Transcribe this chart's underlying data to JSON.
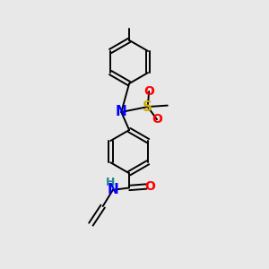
{
  "background_color": "#e8e8e8",
  "bond_color": "#000000",
  "atom_colors": {
    "N": "#0000ff",
    "O": "#ff0000",
    "S": "#ccaa00",
    "H": "#228888",
    "C": "#000000"
  },
  "figsize": [
    3.0,
    3.0
  ],
  "dpi": 100
}
